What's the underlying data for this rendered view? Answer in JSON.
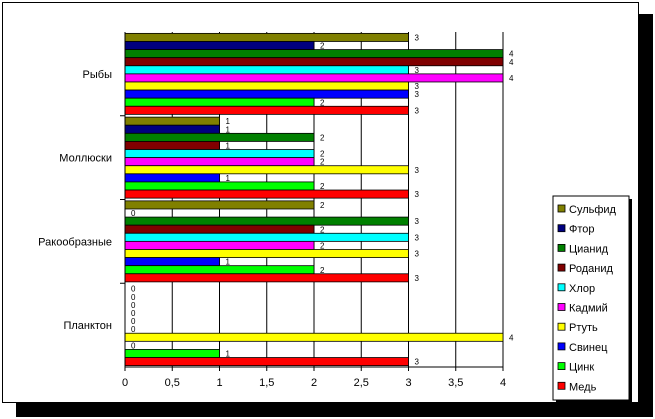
{
  "chart_data": {
    "type": "bar",
    "orientation": "horizontal",
    "title": "",
    "xlabel": "",
    "ylabel": "",
    "categories": [
      "Рыбы",
      "Моллюски",
      "Ракообразные",
      "Планктон"
    ],
    "xlim": [
      0,
      4
    ],
    "x_ticks": [
      "0",
      "0,5",
      "1",
      "1,5",
      "2",
      "2,5",
      "3",
      "3,5",
      "4"
    ],
    "grid": "vertical",
    "legend_position": "right",
    "series": [
      {
        "name": "Сульфид",
        "color": "#808000",
        "values": [
          3,
          1,
          2,
          0
        ]
      },
      {
        "name": "Фтор",
        "color": "#000080",
        "values": [
          2,
          1,
          0,
          0
        ]
      },
      {
        "name": "Цианид",
        "color": "#008000",
        "values": [
          4,
          2,
          3,
          0
        ]
      },
      {
        "name": "Роданид",
        "color": "#800000",
        "values": [
          4,
          1,
          2,
          0
        ]
      },
      {
        "name": "Хлор",
        "color": "#00FFFF",
        "values": [
          3,
          2,
          3,
          0
        ]
      },
      {
        "name": "Кадмий",
        "color": "#FF00FF",
        "values": [
          4,
          2,
          2,
          0
        ]
      },
      {
        "name": "Ртуть",
        "color": "#FFFF00",
        "values": [
          3,
          3,
          3,
          4
        ]
      },
      {
        "name": "Свинец",
        "color": "#0000FF",
        "values": [
          3,
          1,
          1,
          0
        ]
      },
      {
        "name": "Цинк",
        "color": "#00FF00",
        "values": [
          2,
          2,
          2,
          1
        ]
      },
      {
        "name": "Медь",
        "color": "#FF0000",
        "values": [
          3,
          3,
          3,
          3
        ]
      }
    ]
  }
}
